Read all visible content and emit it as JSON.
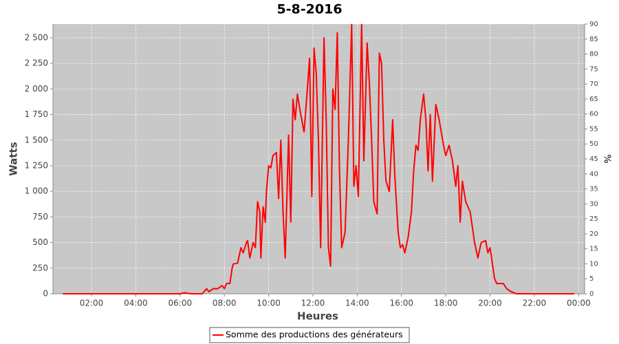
{
  "chart_data": {
    "type": "line",
    "title": "5-8-2016",
    "xlabel": "Heures",
    "ylabel": "Watts",
    "y2label": "%",
    "x": [
      0.7,
      6.0,
      6.2,
      6.5,
      7.0,
      7.2,
      7.3,
      7.5,
      7.7,
      7.9,
      8.0,
      8.1,
      8.25,
      8.35,
      8.4,
      8.6,
      8.75,
      8.85,
      9.0,
      9.05,
      9.15,
      9.3,
      9.4,
      9.5,
      9.6,
      9.65,
      9.75,
      9.85,
      9.9,
      10.0,
      10.1,
      10.2,
      10.35,
      10.45,
      10.55,
      10.65,
      10.75,
      10.9,
      11.0,
      11.1,
      11.2,
      11.3,
      11.45,
      11.6,
      11.75,
      11.85,
      11.95,
      12.05,
      12.15,
      12.25,
      12.35,
      12.5,
      12.6,
      12.7,
      12.8,
      12.9,
      13.0,
      13.1,
      13.2,
      13.3,
      13.45,
      13.6,
      13.75,
      13.85,
      13.95,
      14.05,
      14.2,
      14.3,
      14.45,
      14.55,
      14.65,
      14.75,
      14.9,
      15.0,
      15.1,
      15.2,
      15.3,
      15.45,
      15.6,
      15.7,
      15.85,
      15.95,
      16.05,
      16.15,
      16.3,
      16.45,
      16.55,
      16.65,
      16.75,
      16.85,
      17.0,
      17.1,
      17.2,
      17.3,
      17.4,
      17.55,
      17.7,
      17.9,
      18.0,
      18.15,
      18.3,
      18.45,
      18.55,
      18.65,
      18.75,
      18.9,
      19.1,
      19.3,
      19.45,
      19.6,
      19.8,
      19.9,
      20.0,
      20.2,
      20.3,
      20.6,
      20.75,
      20.95,
      21.2,
      23.8
    ],
    "series": [
      {
        "name": "Somme des productions des  générateurs",
        "color": "#ff0000",
        "values": [
          0,
          0,
          10,
          0,
          0,
          50,
          20,
          50,
          50,
          80,
          50,
          100,
          100,
          250,
          290,
          300,
          450,
          400,
          500,
          520,
          350,
          500,
          450,
          900,
          800,
          350,
          850,
          700,
          1000,
          1250,
          1230,
          1350,
          1380,
          930,
          1500,
          800,
          350,
          1550,
          700,
          1900,
          1700,
          1950,
          1750,
          1580,
          2000,
          2300,
          950,
          2400,
          2150,
          1500,
          450,
          2500,
          1700,
          450,
          270,
          2000,
          1800,
          2550,
          1200,
          450,
          600,
          1500,
          2630,
          1050,
          1250,
          950,
          2630,
          1300,
          2450,
          2050,
          1500,
          900,
          780,
          2350,
          2250,
          1500,
          1100,
          1000,
          1700,
          1150,
          600,
          450,
          480,
          400,
          550,
          800,
          1200,
          1450,
          1400,
          1700,
          1950,
          1700,
          1200,
          1750,
          1100,
          1850,
          1700,
          1450,
          1350,
          1450,
          1300,
          1050,
          1250,
          700,
          1100,
          900,
          800,
          500,
          350,
          500,
          520,
          400,
          450,
          150,
          100,
          100,
          50,
          20,
          0,
          0
        ]
      }
    ],
    "xlim": [
      0.26,
      24.27
    ],
    "xticks": [
      {
        "value": 2,
        "label": "02:00"
      },
      {
        "value": 4,
        "label": "04:00"
      },
      {
        "value": 6,
        "label": "06:00"
      },
      {
        "value": 8,
        "label": "08:00"
      },
      {
        "value": 10,
        "label": "10:00"
      },
      {
        "value": 12,
        "label": "12:00"
      },
      {
        "value": 14,
        "label": "14:00"
      },
      {
        "value": 16,
        "label": "16:00"
      },
      {
        "value": 18,
        "label": "18:00"
      },
      {
        "value": 20,
        "label": "20:00"
      },
      {
        "value": 22,
        "label": "22:00"
      },
      {
        "value": 24,
        "label": "00:00"
      }
    ],
    "ylim": [
      0,
      2634
    ],
    "yticks": [
      0,
      250,
      500,
      750,
      {
        "value": 1000,
        "label": "1 000"
      },
      {
        "value": 1250,
        "label": "1 250"
      },
      {
        "value": 1500,
        "label": "1 500"
      },
      {
        "value": 1750,
        "label": "1 750"
      },
      {
        "value": 2000,
        "label": "2 000"
      },
      {
        "value": 2250,
        "label": "2 250"
      },
      {
        "value": 2500,
        "label": "2 500"
      }
    ],
    "y2lim": [
      0,
      90
    ],
    "y2ticks": [
      0,
      5,
      10,
      15,
      20,
      25,
      30,
      35,
      40,
      45,
      50,
      55,
      60,
      65,
      70,
      75,
      80,
      85,
      90
    ],
    "grid": true,
    "legend": "bottom"
  }
}
